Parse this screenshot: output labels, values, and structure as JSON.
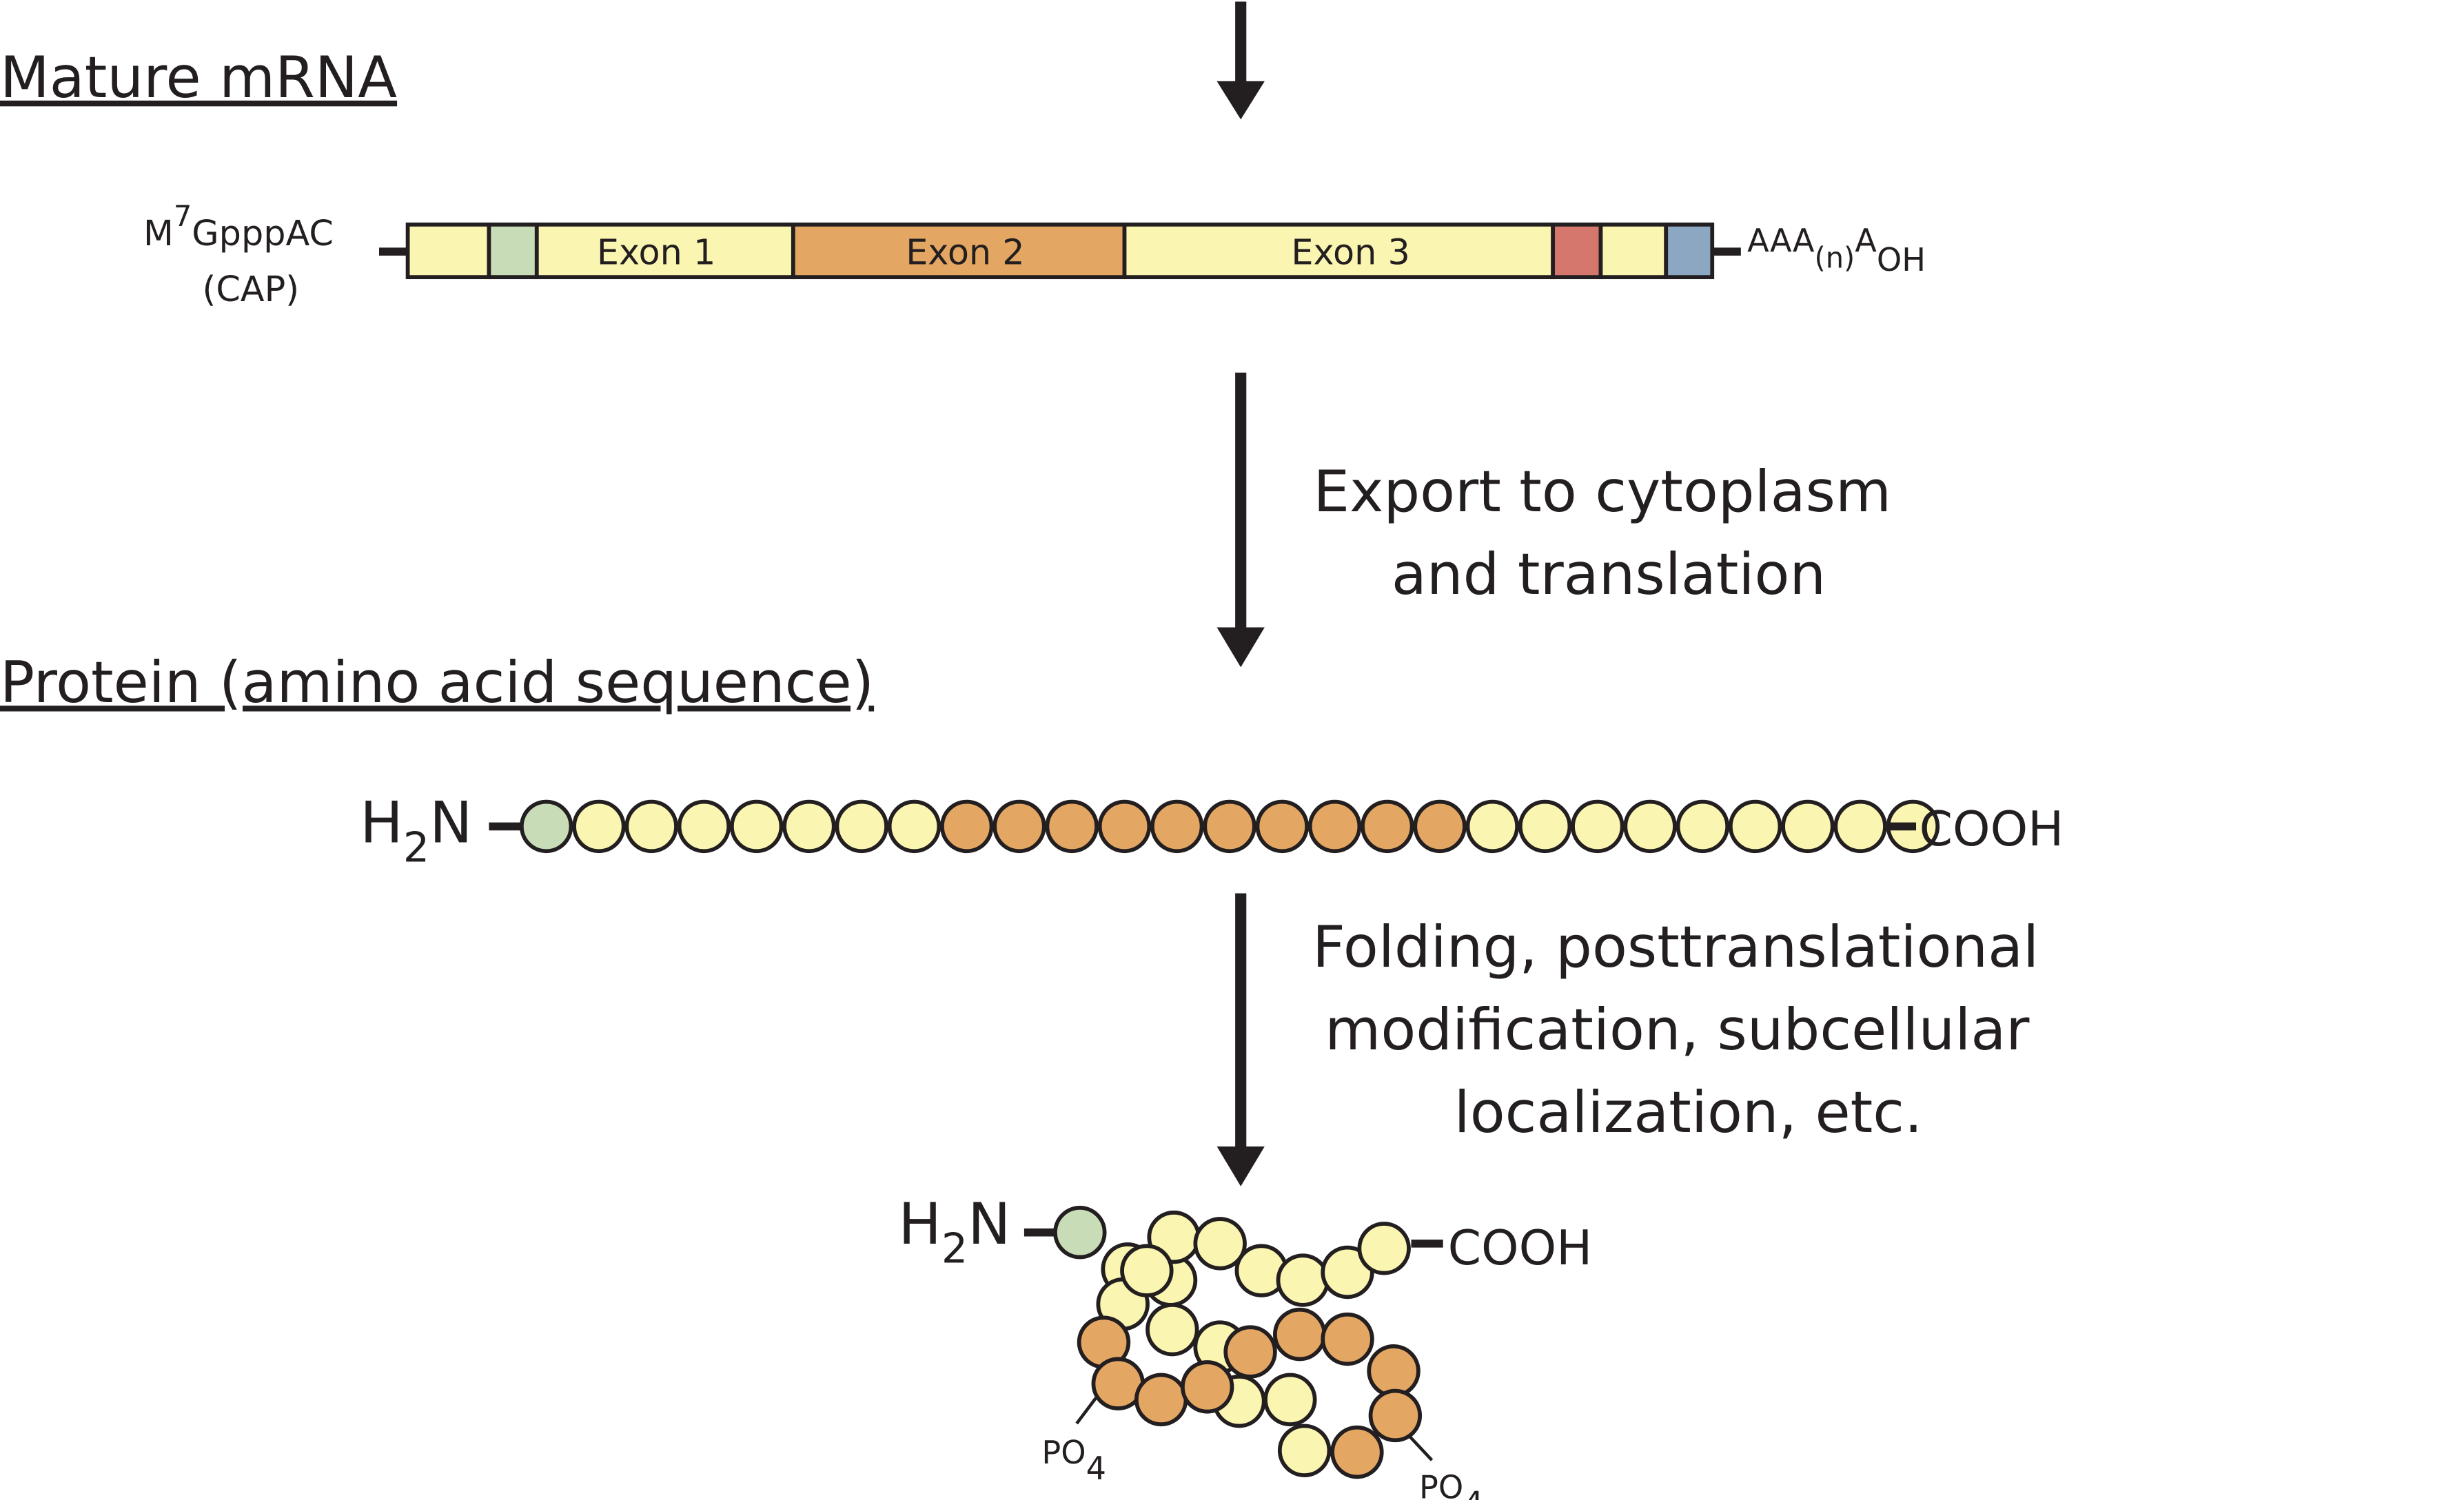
{
  "sections": {
    "mature_mrna": "Mature mRNA",
    "protein": "Protein (amino acid sequence)"
  },
  "mrna": {
    "cap_prefix": "M",
    "cap_superscript": "7",
    "cap_suffix": "GpppAC",
    "cap_label": "(CAP)",
    "tail_prefix": "AAA",
    "tail_sub": "(n)",
    "tail_mid": "A",
    "tail_sub2": "OH",
    "exons": [
      "Exon 1",
      "Exon 2",
      "Exon 3"
    ]
  },
  "steps": {
    "export_line1": "Export to cytoplasm",
    "export_line2": "and translation",
    "fold_line1": "Folding, posttranslational",
    "fold_line2": "modification, subcellular",
    "fold_line3": "localization, etc."
  },
  "chain": {
    "n_term": "H",
    "n_term_sub": "2",
    "n_term_end": "N",
    "c_term": "COOH",
    "sequence": [
      "green",
      "yellow",
      "yellow",
      "yellow",
      "yellow",
      "yellow",
      "yellow",
      "yellow",
      "orange",
      "orange",
      "orange",
      "orange",
      "orange",
      "orange",
      "orange",
      "orange",
      "orange",
      "orange",
      "yellow",
      "yellow",
      "yellow",
      "yellow",
      "yellow",
      "yellow",
      "yellow",
      "yellow",
      "yellow"
    ]
  },
  "folded": {
    "n_term": "H",
    "n_term_sub": "2",
    "n_term_end": "N",
    "c_term": "COOH",
    "phosphate": "PO",
    "phosphate_sub": "4"
  },
  "colors": {
    "yellow": "#faf5b0",
    "orange": "#e3a663",
    "green": "#c9dcb8",
    "red": "#d5776c",
    "blue": "#8ca7c2",
    "ink": "#231f20"
  }
}
